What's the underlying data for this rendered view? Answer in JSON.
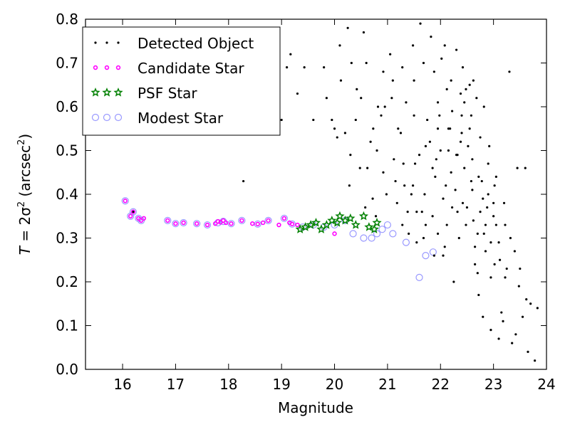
{
  "chart_data": {
    "type": "scatter",
    "xlabel": "Magnitude",
    "ylabel": {
      "italic": "T",
      "middle": " = 2σ",
      "sup1": "2",
      "rest": " (arcsec",
      "sup2": "2",
      "close": ")"
    },
    "xlim": [
      15.3,
      24.0
    ],
    "ylim": [
      0.0,
      0.8
    ],
    "xticks": [
      "16",
      "17",
      "18",
      "19",
      "20",
      "21",
      "22",
      "23",
      "24"
    ],
    "yticks": [
      "0.0",
      "0.1",
      "0.2",
      "0.3",
      "0.4",
      "0.5",
      "0.6",
      "0.7",
      "0.8"
    ],
    "grid": false,
    "legend_placement": "top-left",
    "series": [
      {
        "name": "Detected Object",
        "marker": "dot",
        "color": "#000000",
        "points": [
          [
            16.2,
            0.36
          ],
          [
            18.28,
            0.43
          ],
          [
            18.75,
            0.7
          ],
          [
            19.0,
            0.57
          ],
          [
            19.1,
            0.69
          ],
          [
            19.17,
            0.72
          ],
          [
            19.3,
            0.63
          ],
          [
            19.43,
            0.69
          ],
          [
            19.6,
            0.57
          ],
          [
            19.8,
            0.69
          ],
          [
            19.95,
            0.57
          ],
          [
            20.0,
            0.55
          ],
          [
            20.1,
            0.74
          ],
          [
            20.2,
            0.54
          ],
          [
            20.3,
            0.49
          ],
          [
            20.4,
            0.57
          ],
          [
            20.5,
            0.62
          ],
          [
            20.6,
            0.7
          ],
          [
            20.73,
            0.55
          ],
          [
            20.8,
            0.5
          ],
          [
            20.95,
            0.6
          ],
          [
            21.05,
            0.72
          ],
          [
            21.15,
            0.43
          ],
          [
            21.2,
            0.55
          ],
          [
            21.3,
            0.47
          ],
          [
            21.4,
            0.31
          ],
          [
            21.5,
            0.66
          ],
          [
            21.55,
            0.36
          ],
          [
            21.6,
            0.49
          ],
          [
            21.7,
            0.4
          ],
          [
            21.75,
            0.57
          ],
          [
            21.8,
            0.52
          ],
          [
            21.85,
            0.35
          ],
          [
            21.9,
            0.44
          ],
          [
            21.95,
            0.61
          ],
          [
            22.0,
            0.5
          ],
          [
            22.05,
            0.26
          ],
          [
            22.1,
            0.42
          ],
          [
            22.15,
            0.55
          ],
          [
            22.2,
            0.66
          ],
          [
            22.25,
            0.2
          ],
          [
            22.3,
            0.49
          ],
          [
            22.35,
            0.3
          ],
          [
            22.4,
            0.58
          ],
          [
            22.45,
            0.46
          ],
          [
            22.5,
            0.37
          ],
          [
            22.55,
            0.65
          ],
          [
            22.6,
            0.41
          ],
          [
            22.65,
            0.24
          ],
          [
            22.7,
            0.31
          ],
          [
            22.75,
            0.53
          ],
          [
            22.8,
            0.39
          ],
          [
            22.85,
            0.27
          ],
          [
            22.9,
            0.47
          ],
          [
            22.95,
            0.21
          ],
          [
            23.0,
            0.35
          ],
          [
            23.05,
            0.44
          ],
          [
            23.1,
            0.29
          ],
          [
            23.15,
            0.13
          ],
          [
            23.2,
            0.38
          ],
          [
            23.25,
            0.23
          ],
          [
            23.3,
            0.68
          ],
          [
            23.35,
            0.06
          ],
          [
            23.45,
            0.46
          ],
          [
            23.5,
            0.23
          ],
          [
            23.6,
            0.46
          ],
          [
            23.62,
            0.16
          ],
          [
            23.65,
            0.04
          ],
          [
            23.7,
            0.15
          ],
          [
            23.78,
            0.02
          ],
          [
            23.83,
            0.14
          ],
          [
            22.3,
            0.73
          ],
          [
            22.4,
            0.54
          ],
          [
            21.95,
            0.55
          ],
          [
            21.5,
            0.58
          ],
          [
            21.35,
            0.61
          ],
          [
            21.25,
            0.54
          ],
          [
            21.1,
            0.66
          ],
          [
            20.92,
            0.68
          ],
          [
            20.55,
            0.77
          ],
          [
            20.25,
            0.78
          ],
          [
            20.05,
            0.53
          ],
          [
            19.85,
            0.62
          ],
          [
            22.6,
            0.48
          ],
          [
            22.55,
            0.55
          ],
          [
            22.45,
            0.61
          ],
          [
            22.38,
            0.63
          ],
          [
            22.2,
            0.45
          ],
          [
            22.05,
            0.39
          ],
          [
            21.85,
            0.46
          ],
          [
            21.65,
            0.36
          ],
          [
            21.48,
            0.42
          ],
          [
            22.75,
            0.36
          ],
          [
            22.85,
            0.33
          ],
          [
            22.95,
            0.29
          ],
          [
            23.05,
            0.33
          ],
          [
            23.12,
            0.25
          ],
          [
            22.65,
            0.28
          ],
          [
            22.48,
            0.33
          ],
          [
            22.32,
            0.36
          ],
          [
            22.12,
            0.33
          ],
          [
            21.95,
            0.31
          ],
          [
            21.72,
            0.33
          ],
          [
            21.55,
            0.29
          ],
          [
            21.38,
            0.36
          ],
          [
            22.02,
            0.71
          ],
          [
            21.82,
            0.76
          ],
          [
            21.62,
            0.79
          ],
          [
            22.12,
            0.64
          ],
          [
            22.22,
            0.59
          ],
          [
            22.42,
            0.69
          ],
          [
            22.62,
            0.66
          ],
          [
            22.82,
            0.6
          ],
          [
            22.92,
            0.51
          ],
          [
            23.02,
            0.42
          ],
          [
            22.72,
            0.44
          ],
          [
            22.52,
            0.51
          ],
          [
            22.32,
            0.49
          ],
          [
            22.15,
            0.5
          ],
          [
            21.92,
            0.48
          ],
          [
            21.72,
            0.51
          ],
          [
            21.52,
            0.47
          ],
          [
            21.32,
            0.42
          ],
          [
            21.12,
            0.48
          ],
          [
            20.92,
            0.45
          ],
          [
            20.72,
            0.39
          ],
          [
            20.62,
            0.46
          ],
          [
            20.82,
            0.6
          ],
          [
            20.42,
            0.64
          ],
          [
            20.32,
            0.7
          ],
          [
            20.12,
            0.66
          ],
          [
            23.22,
            0.33
          ],
          [
            23.32,
            0.3
          ],
          [
            23.4,
            0.27
          ],
          [
            23.0,
            0.38
          ],
          [
            22.9,
            0.4
          ],
          [
            22.7,
            0.22
          ],
          [
            22.8,
            0.12
          ],
          [
            22.95,
            0.09
          ],
          [
            23.1,
            0.07
          ],
          [
            23.18,
            0.11
          ],
          [
            22.88,
            0.37
          ],
          [
            22.78,
            0.43
          ],
          [
            22.58,
            0.43
          ],
          [
            22.28,
            0.41
          ],
          [
            22.08,
            0.28
          ],
          [
            21.88,
            0.26
          ],
          [
            21.68,
            0.3
          ],
          [
            21.45,
            0.4
          ],
          [
            21.98,
            0.58
          ],
          [
            22.18,
            0.55
          ],
          [
            22.38,
            0.52
          ],
          [
            22.58,
            0.58
          ],
          [
            22.68,
            0.62
          ],
          [
            22.48,
            0.64
          ],
          [
            22.08,
            0.74
          ],
          [
            21.88,
            0.68
          ],
          [
            21.68,
            0.7
          ],
          [
            21.48,
            0.74
          ],
          [
            21.28,
            0.69
          ],
          [
            21.08,
            0.62
          ],
          [
            20.88,
            0.58
          ],
          [
            20.68,
            0.52
          ],
          [
            20.48,
            0.46
          ],
          [
            20.28,
            0.42
          ],
          [
            20.58,
            0.37
          ],
          [
            20.78,
            0.35
          ],
          [
            20.98,
            0.4
          ],
          [
            21.18,
            0.38
          ],
          [
            21.28,
            0.33
          ],
          [
            22.22,
            0.37
          ],
          [
            22.42,
            0.38
          ],
          [
            22.62,
            0.34
          ],
          [
            22.82,
            0.31
          ],
          [
            23.02,
            0.24
          ],
          [
            23.22,
            0.21
          ],
          [
            22.72,
            0.17
          ],
          [
            23.48,
            0.19
          ],
          [
            23.55,
            0.12
          ],
          [
            23.42,
            0.08
          ]
        ]
      },
      {
        "name": "Candidate Star",
        "marker": "small-circle",
        "color": "#ff00ff",
        "points": [
          [
            16.05,
            0.385
          ],
          [
            16.15,
            0.35
          ],
          [
            16.2,
            0.36
          ],
          [
            16.3,
            0.345
          ],
          [
            16.35,
            0.34
          ],
          [
            16.4,
            0.345
          ],
          [
            16.85,
            0.34
          ],
          [
            17.0,
            0.333
          ],
          [
            17.15,
            0.335
          ],
          [
            17.4,
            0.333
          ],
          [
            17.6,
            0.33
          ],
          [
            17.75,
            0.333
          ],
          [
            17.8,
            0.338
          ],
          [
            17.85,
            0.336
          ],
          [
            17.9,
            0.34
          ],
          [
            17.95,
            0.335
          ],
          [
            18.05,
            0.333
          ],
          [
            18.25,
            0.34
          ],
          [
            18.45,
            0.333
          ],
          [
            18.55,
            0.332
          ],
          [
            18.65,
            0.335
          ],
          [
            18.75,
            0.34
          ],
          [
            18.95,
            0.33
          ],
          [
            19.05,
            0.345
          ],
          [
            19.15,
            0.335
          ],
          [
            19.2,
            0.332
          ],
          [
            19.3,
            0.33
          ],
          [
            20.0,
            0.31
          ]
        ]
      },
      {
        "name": "PSF Star",
        "marker": "star",
        "color": "#008000",
        "points": [
          [
            19.35,
            0.32
          ],
          [
            19.45,
            0.325
          ],
          [
            19.55,
            0.33
          ],
          [
            19.65,
            0.335
          ],
          [
            19.75,
            0.32
          ],
          [
            19.85,
            0.33
          ],
          [
            19.95,
            0.34
          ],
          [
            20.05,
            0.335
          ],
          [
            20.1,
            0.35
          ],
          [
            20.2,
            0.34
          ],
          [
            20.3,
            0.345
          ],
          [
            20.4,
            0.33
          ],
          [
            20.55,
            0.35
          ],
          [
            20.65,
            0.325
          ],
          [
            20.75,
            0.32
          ],
          [
            20.8,
            0.335
          ]
        ]
      },
      {
        "name": "Modest Star",
        "marker": "open-circle",
        "color": "#9999ff",
        "points": [
          [
            16.05,
            0.385
          ],
          [
            16.15,
            0.35
          ],
          [
            16.2,
            0.36
          ],
          [
            16.3,
            0.345
          ],
          [
            16.35,
            0.34
          ],
          [
            16.85,
            0.34
          ],
          [
            17.0,
            0.333
          ],
          [
            17.15,
            0.335
          ],
          [
            17.4,
            0.333
          ],
          [
            17.6,
            0.33
          ],
          [
            17.8,
            0.335
          ],
          [
            17.9,
            0.338
          ],
          [
            18.05,
            0.333
          ],
          [
            18.25,
            0.34
          ],
          [
            18.55,
            0.332
          ],
          [
            18.75,
            0.34
          ],
          [
            19.05,
            0.345
          ],
          [
            19.2,
            0.332
          ],
          [
            19.4,
            0.325
          ],
          [
            19.6,
            0.33
          ],
          [
            19.8,
            0.325
          ],
          [
            20.0,
            0.33
          ],
          [
            20.2,
            0.34
          ],
          [
            20.35,
            0.31
          ],
          [
            20.55,
            0.3
          ],
          [
            20.7,
            0.3
          ],
          [
            20.8,
            0.31
          ],
          [
            20.9,
            0.32
          ],
          [
            21.0,
            0.33
          ],
          [
            21.1,
            0.31
          ],
          [
            21.35,
            0.29
          ],
          [
            21.6,
            0.21
          ],
          [
            21.72,
            0.26
          ],
          [
            21.86,
            0.268
          ]
        ]
      }
    ]
  }
}
